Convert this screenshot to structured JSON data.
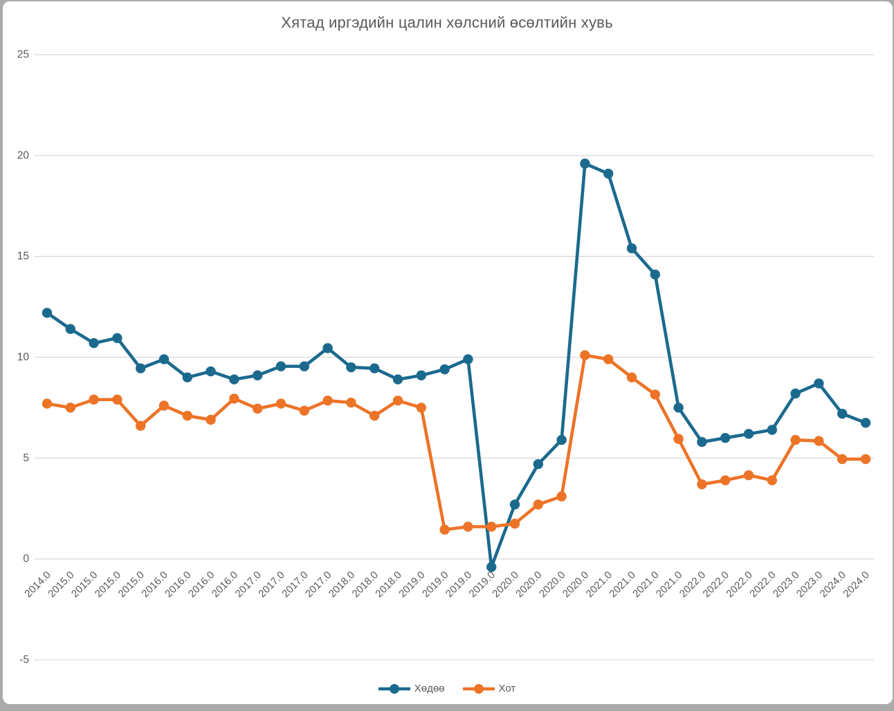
{
  "chart_data": {
    "type": "line",
    "title": "Хятад иргэдийн цалин хөлсний өсөлтийн хувь",
    "categories": [
      "2014.0",
      "2015.0",
      "2015.0",
      "2015.0",
      "2015.0",
      "2016.0",
      "2016.0",
      "2016.0",
      "2016.0",
      "2017.0",
      "2017.0",
      "2017.0",
      "2017.0",
      "2018.0",
      "2018.0",
      "2018.0",
      "2019.0",
      "2019.0",
      "2019.0",
      "2019.0",
      "2020.0",
      "2020.0",
      "2020.0",
      "2020.0",
      "2021.0",
      "2021.0",
      "2021.0",
      "2021.0",
      "2022.0",
      "2022.0",
      "2022.0",
      "2022.0",
      "2023.0",
      "2023.0",
      "2024.0",
      "2024.0"
    ],
    "series": [
      {
        "name": "Хөдөө",
        "color": "#1B6A8E",
        "values": [
          12.2,
          11.4,
          10.7,
          10.95,
          9.45,
          9.9,
          9.0,
          9.3,
          8.9,
          9.1,
          9.55,
          9.55,
          10.45,
          9.5,
          9.45,
          8.9,
          9.1,
          9.4,
          9.9,
          -0.4,
          2.7,
          4.7,
          5.9,
          19.6,
          19.1,
          15.4,
          14.1,
          7.5,
          5.8,
          6.0,
          6.2,
          6.4,
          8.2,
          8.7,
          7.2,
          6.75
        ]
      },
      {
        "name": "Хот",
        "color": "#ED7327",
        "values": [
          7.7,
          7.5,
          7.9,
          7.9,
          6.6,
          7.6,
          7.1,
          6.9,
          7.95,
          7.45,
          7.7,
          7.35,
          7.85,
          7.75,
          7.1,
          7.85,
          7.5,
          1.45,
          1.6,
          1.6,
          1.75,
          2.7,
          3.1,
          10.1,
          9.9,
          9.0,
          8.15,
          5.95,
          3.7,
          3.9,
          4.15,
          3.9,
          5.9,
          5.85,
          4.95,
          4.95
        ]
      }
    ],
    "ylim": [
      -5,
      25
    ],
    "yticks": [
      25,
      20,
      15,
      10,
      5,
      0,
      -5
    ],
    "grid": true,
    "legend_position": "bottom",
    "x_label_rotation_deg": 45,
    "colors": {
      "gridline": "#D9D9D9",
      "axis_text": "#595959",
      "title_text": "#595959",
      "frame": "#ABABAB",
      "background": "#FFFFFF"
    }
  }
}
